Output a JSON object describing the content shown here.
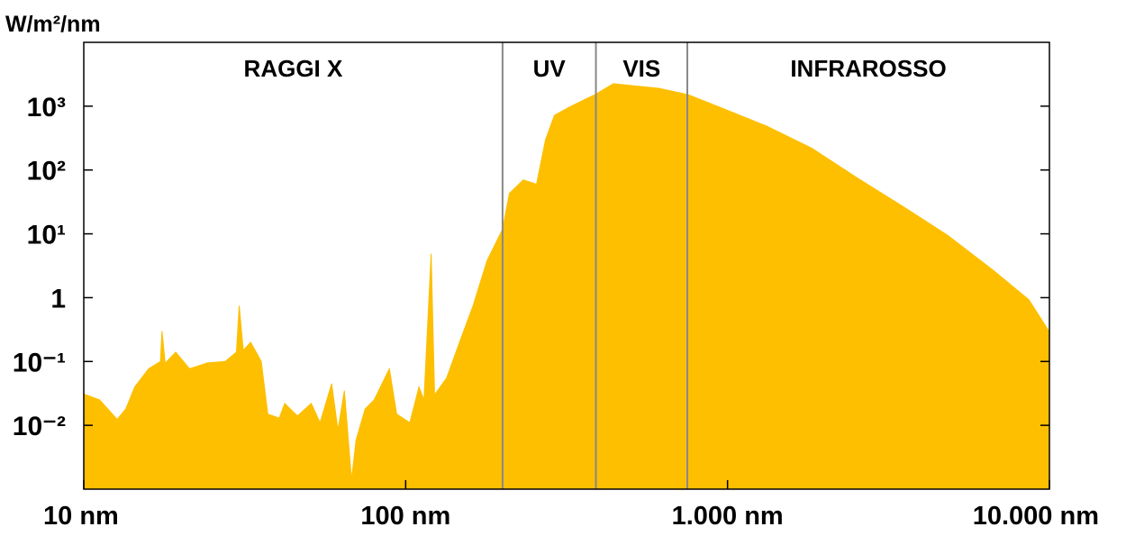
{
  "chart_data": {
    "type": "area",
    "y_label": "W/m²/nm",
    "log_x": true,
    "log_y": true,
    "color": "#fdbf00",
    "x": [
      10,
      11.2,
      12.7,
      13.5,
      14.4,
      15.9,
      17.3,
      17.5,
      17.9,
      19.3,
      21.3,
      24.2,
      27.5,
      29.8,
      30.4,
      31.3,
      33,
      35.6,
      37.3,
      40.5,
      42.1,
      46.1,
      50.9,
      54.2,
      58.9,
      61.6,
      64.5,
      67.9,
      70.1,
      74.8,
      79.8,
      89,
      93.8,
      103,
      110,
      114,
      120,
      123,
      134,
      147,
      162,
      179,
      200,
      210,
      232,
      255,
      272,
      290,
      319,
      363,
      388,
      442,
      504,
      611,
      753,
      956,
      1320,
      1830,
      2530,
      3500,
      4840,
      6680,
      8630,
      10000
    ],
    "values": [
      0.031,
      0.025,
      0.0124,
      0.018,
      0.04,
      0.077,
      0.1,
      0.3,
      0.094,
      0.14,
      0.077,
      0.095,
      0.1,
      0.14,
      0.75,
      0.15,
      0.2,
      0.1,
      0.015,
      0.013,
      0.022,
      0.014,
      0.022,
      0.011,
      0.045,
      0.0084,
      0.035,
      0.0014,
      0.0058,
      0.018,
      0.025,
      0.077,
      0.015,
      0.011,
      0.04,
      0.025,
      4.9,
      0.03,
      0.055,
      0.2,
      0.75,
      3.8,
      11.8,
      43,
      70,
      60,
      300,
      720,
      940,
      1300,
      1520,
      2250,
      2100,
      1910,
      1520,
      940,
      490,
      218,
      75,
      27,
      9.4,
      2.7,
      0.93,
      0.29
    ],
    "xlim": [
      10,
      10000
    ],
    "ylim": [
      0.001,
      10000
    ],
    "xticks": [
      {
        "value": 10,
        "label": "10 nm"
      },
      {
        "value": 100,
        "label": "100 nm"
      },
      {
        "value": 1000,
        "label": "1.000 nm"
      },
      {
        "value": 10000,
        "label": "10.000 nm"
      }
    ],
    "yticks": [
      {
        "value": 0.01,
        "label": "10⁻²"
      },
      {
        "value": 0.1,
        "label": "10⁻¹"
      },
      1,
      {
        "value": 10,
        "label": "10¹"
      },
      {
        "value": 100,
        "label": "10²"
      },
      {
        "value": 1000,
        "label": "10³"
      }
    ],
    "dividers": [
      200,
      390,
      750
    ],
    "regions": [
      "RAGGI X",
      "UV",
      "VIS",
      "INFRAROSSO"
    ]
  }
}
